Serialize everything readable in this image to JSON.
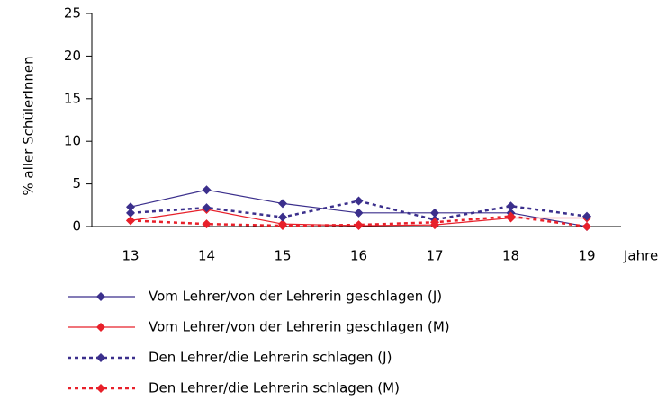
{
  "chart_data": {
    "type": "line",
    "y_label": "% aller SchülerInnen",
    "x_label": "Jahre",
    "categories": [
      "13",
      "14",
      "15",
      "16",
      "17",
      "18",
      "19"
    ],
    "ylim": [
      0,
      25
    ],
    "yticks": [
      0,
      5,
      10,
      15,
      20,
      25
    ],
    "series": [
      {
        "name": "Vom Lehrer/von der Lehrerin geschlagen (J)",
        "color": "#3b2f8c",
        "dashed": false,
        "values": [
          2.3,
          4.3,
          2.7,
          1.6,
          1.6,
          1.6,
          0
        ]
      },
      {
        "name": "Vom Lehrer/von der Lehrerin geschlagen (M)",
        "color": "#e8202a",
        "dashed": false,
        "values": [
          0.7,
          2.0,
          0.3,
          0.1,
          0.2,
          1.0,
          1.0
        ]
      },
      {
        "name": "Den Lehrer/die Lehrerin schlagen (J)",
        "color": "#3b2f8c",
        "dashed": true,
        "values": [
          1.6,
          2.2,
          1.1,
          3.0,
          0.8,
          2.4,
          1.2
        ]
      },
      {
        "name": "Den Lehrer/die Lehrerin schlagen (M)",
        "color": "#e8202a",
        "dashed": true,
        "values": [
          0.7,
          0.3,
          0.1,
          0.2,
          0.5,
          1.2,
          0
        ]
      }
    ]
  }
}
